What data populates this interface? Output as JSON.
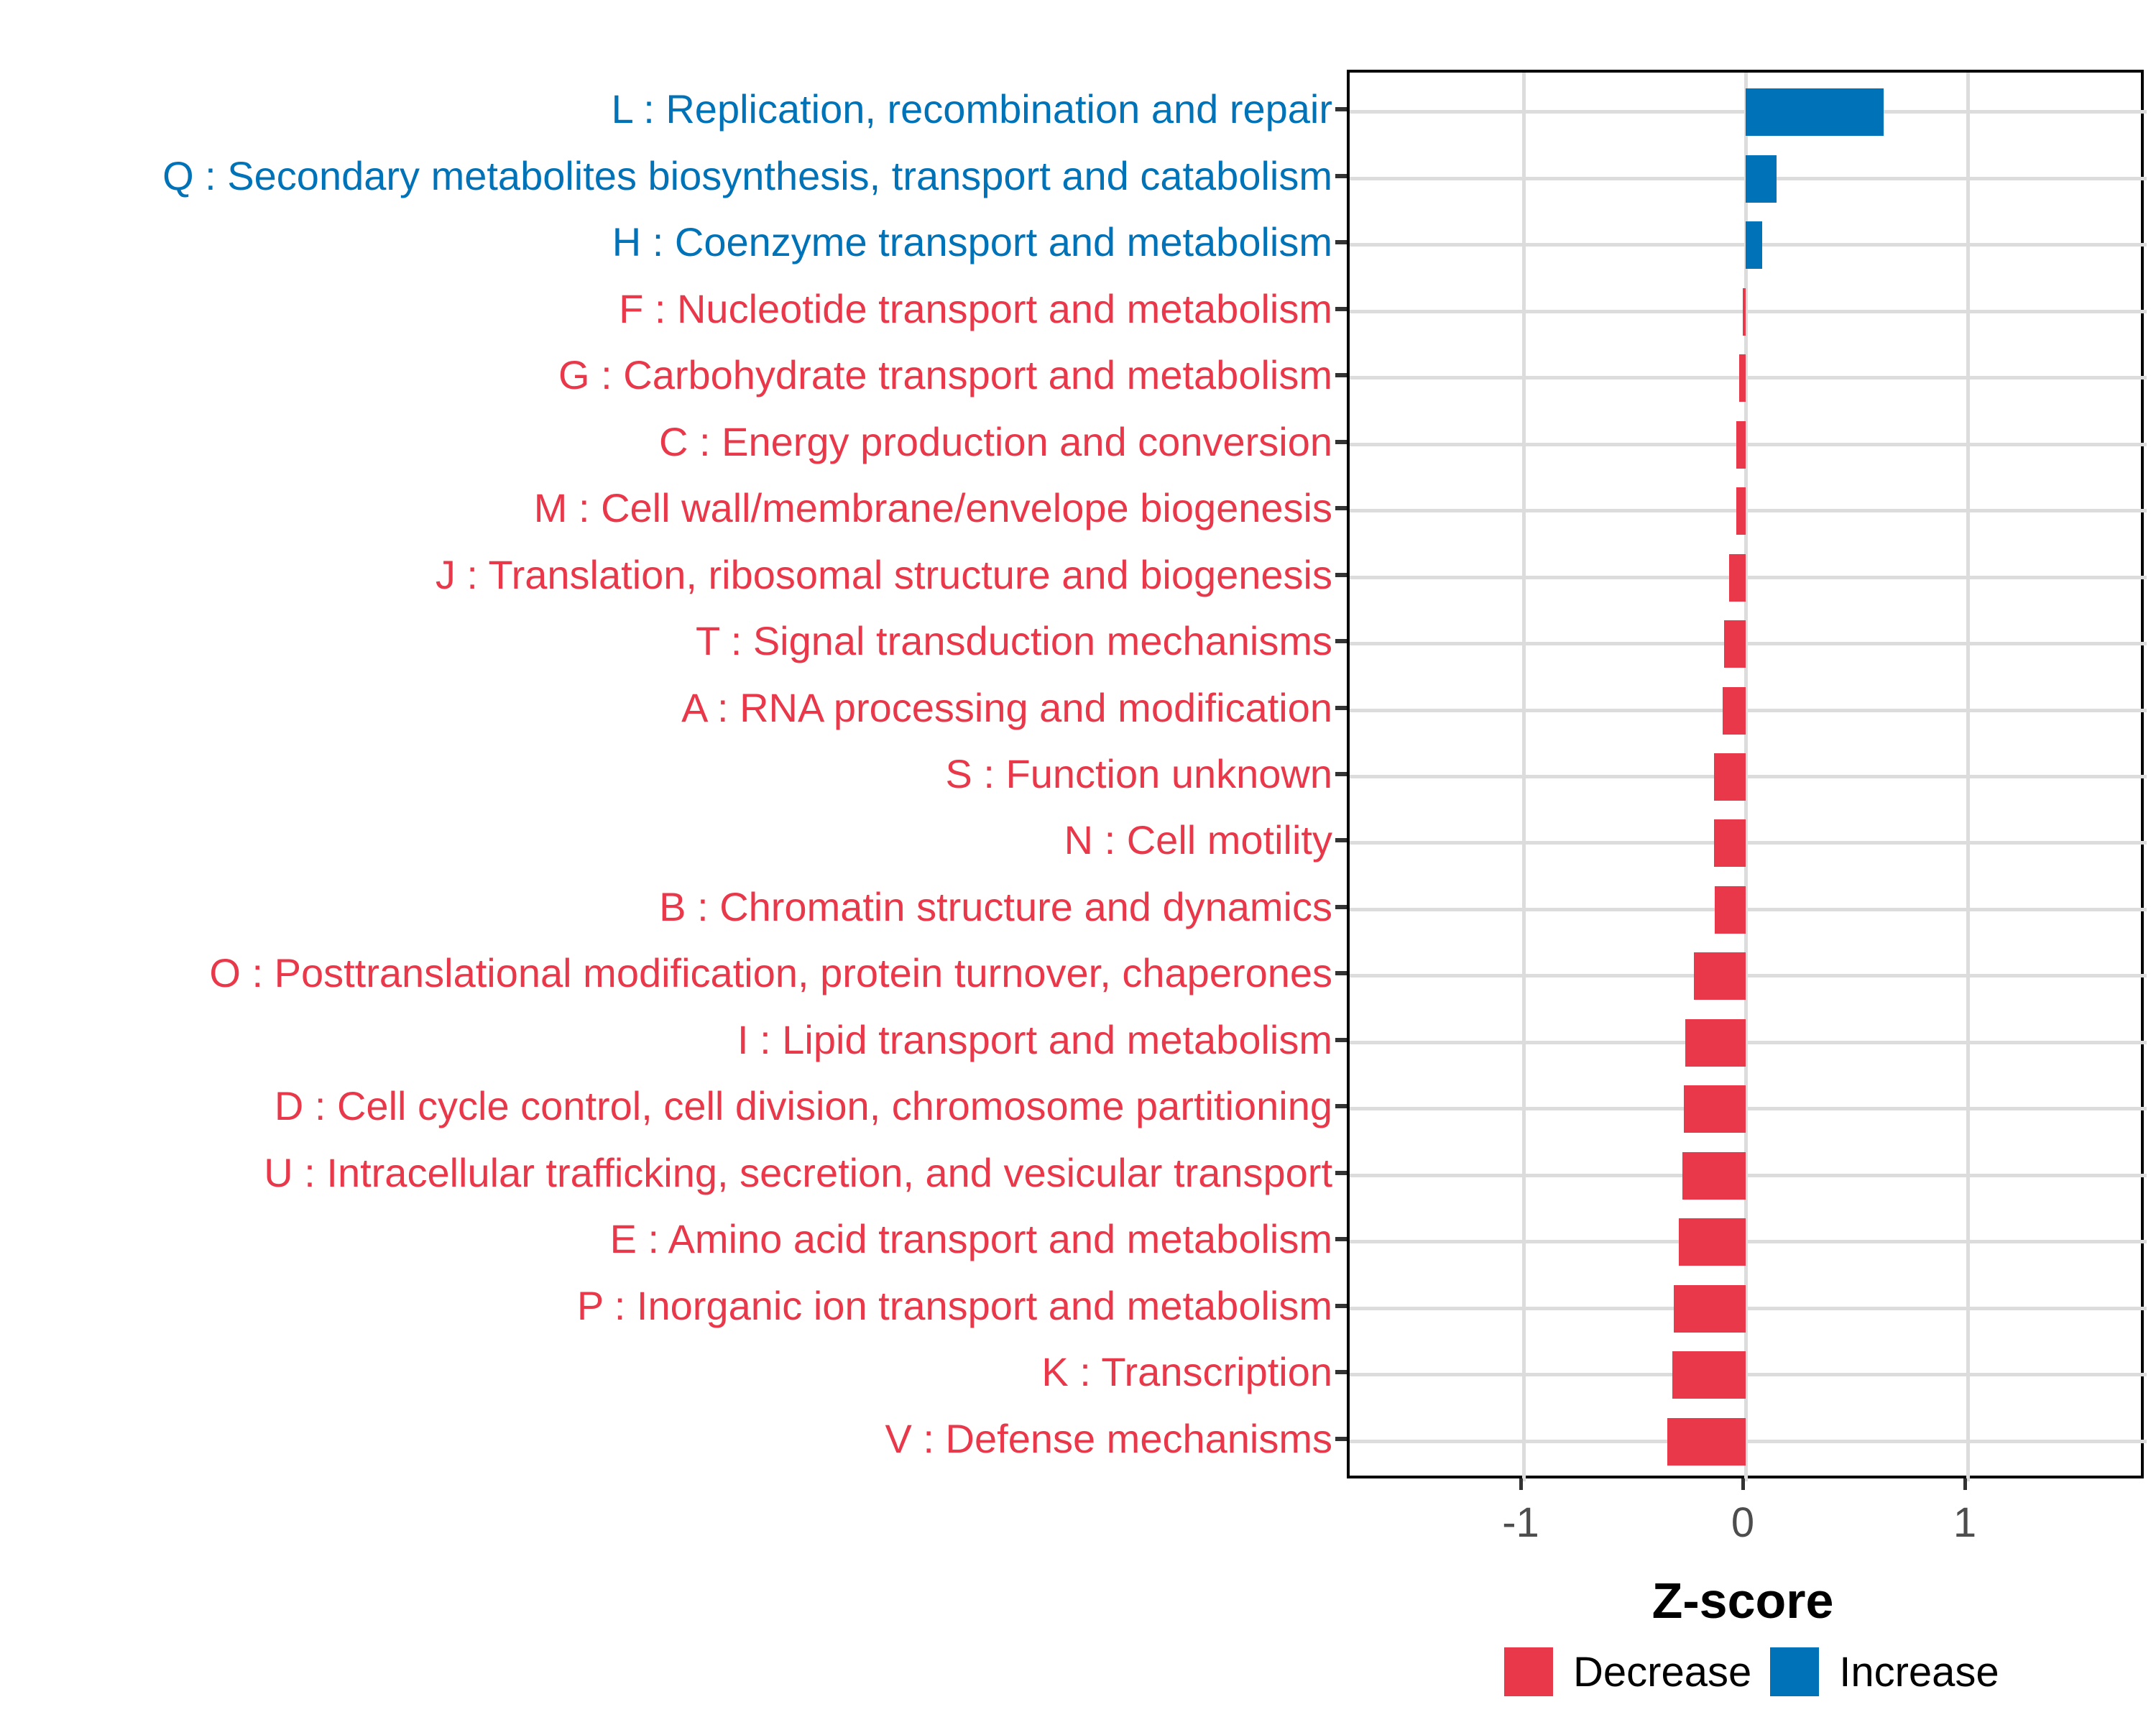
{
  "chart_data": {
    "type": "bar",
    "orientation": "horizontal",
    "title": "",
    "xlabel": "Z-score",
    "ylabel": "",
    "xlim": [
      -1.78,
      1.81
    ],
    "x_ticks": [
      "-1",
      "0",
      "1"
    ],
    "x_tick_values": [
      -1,
      0,
      1
    ],
    "grid": true,
    "legend_position": "bottom",
    "legend": [
      "Decrease",
      "Increase"
    ],
    "group_colors": {
      "Decrease": "#e8384a",
      "Increase": "#0073b8"
    },
    "categories": [
      "L : Replication, recombination and repair",
      "Q : Secondary metabolites biosynthesis, transport and catabolism",
      "H : Coenzyme transport and metabolism",
      "F : Nucleotide transport and metabolism",
      "G : Carbohydrate transport and metabolism",
      "C : Energy production and conversion",
      "M : Cell wall/membrane/envelope biogenesis",
      "J : Translation, ribosomal structure and biogenesis",
      "T : Signal transduction mechanisms",
      "A : RNA processing and modification",
      "S : Function unknown",
      "N : Cell motility",
      "B : Chromatin structure and dynamics",
      "O : Posttranslational modification, protein turnover, chaperones",
      "I : Lipid transport and metabolism",
      "D : Cell cycle control, cell division, chromosome partitioning",
      "U : Intracellular trafficking, secretion, and vesicular transport",
      "E : Amino acid transport and metabolism",
      "P : Inorganic ion transport and metabolism",
      "K : Transcription",
      "V : Defense mechanisms"
    ],
    "values": [
      0.62,
      0.14,
      0.073,
      -0.012,
      -0.03,
      -0.042,
      -0.042,
      -0.073,
      -0.097,
      -0.102,
      -0.143,
      -0.142,
      -0.14,
      -0.233,
      -0.272,
      -0.277,
      -0.285,
      -0.301,
      -0.325,
      -0.331,
      -0.353
    ],
    "groups": [
      "Increase",
      "Increase",
      "Increase",
      "Decrease",
      "Decrease",
      "Decrease",
      "Decrease",
      "Decrease",
      "Decrease",
      "Decrease",
      "Decrease",
      "Decrease",
      "Decrease",
      "Decrease",
      "Decrease",
      "Decrease",
      "Decrease",
      "Decrease",
      "Decrease",
      "Decrease",
      "Decrease"
    ],
    "colors": {
      "grid": "#dcdcdc",
      "panel_border": "#000000",
      "tick": "#333333",
      "tick_label": "#4d4d4d",
      "axis_title": "#000000"
    }
  }
}
